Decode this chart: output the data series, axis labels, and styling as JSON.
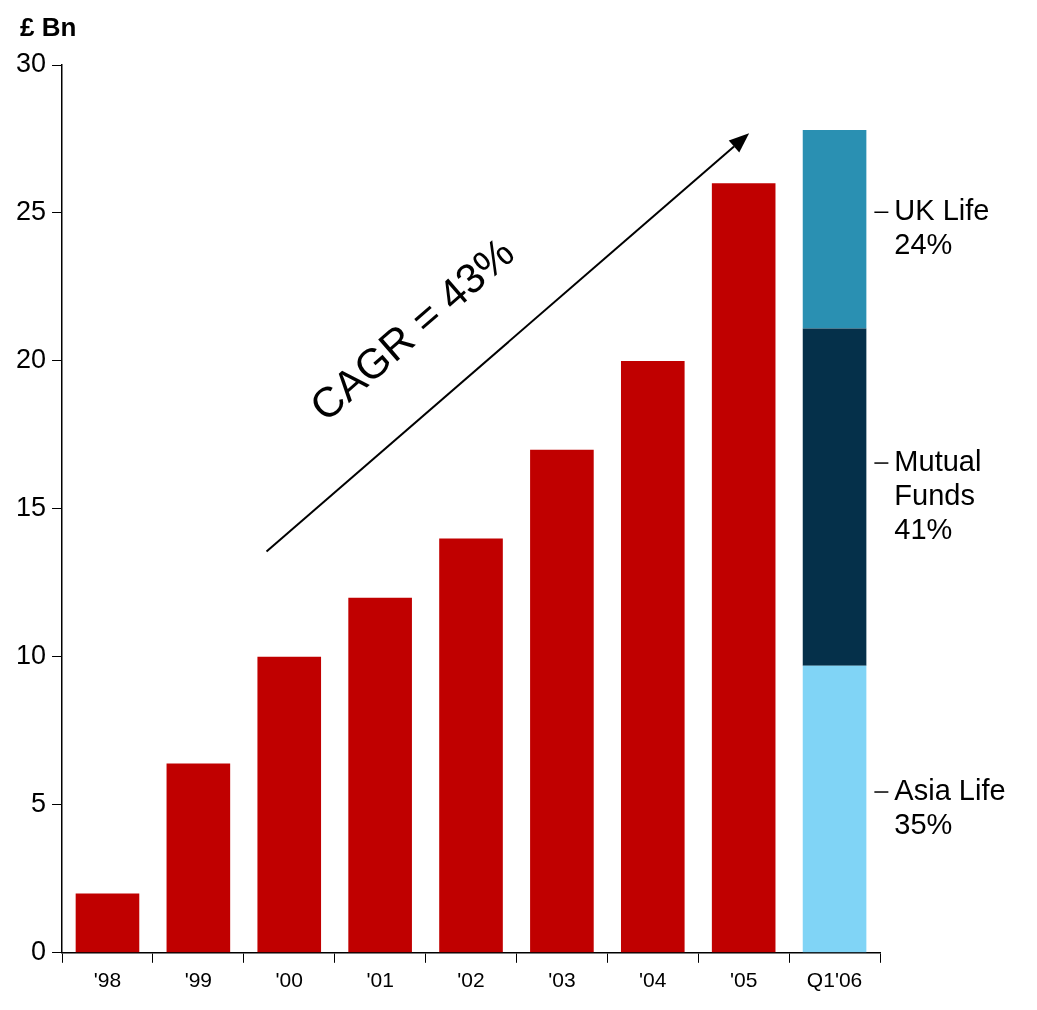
{
  "chart_data": {
    "type": "bar",
    "ylabel": "£ Bn",
    "categories": [
      "'98",
      "'99",
      "'00",
      "'01",
      "'02",
      "'03",
      "'04",
      "'05",
      "Q1'06"
    ],
    "stacked": true,
    "legend": false,
    "series": [
      {
        "color": "#c00000",
        "values": [
          2,
          6.4,
          10,
          12,
          14,
          17,
          20,
          26,
          null
        ]
      },
      {
        "name": "Asia Life 35%",
        "color": "#80d4f6",
        "values": [
          null,
          null,
          null,
          null,
          null,
          null,
          null,
          null,
          9.7
        ]
      },
      {
        "name": "Mutual Funds 41%",
        "color": "#05304a",
        "values": [
          null,
          null,
          null,
          null,
          null,
          null,
          null,
          null,
          11.4
        ]
      },
      {
        "name": "UK Life 24%",
        "color": "#2a90b2",
        "values": [
          null,
          null,
          null,
          null,
          null,
          null,
          null,
          null,
          6.7
        ]
      }
    ],
    "ylim": [
      0,
      30
    ],
    "yticks": [
      0,
      5,
      10,
      15,
      20,
      25,
      30
    ],
    "annotations": [
      "CAGR = 43%"
    ]
  }
}
